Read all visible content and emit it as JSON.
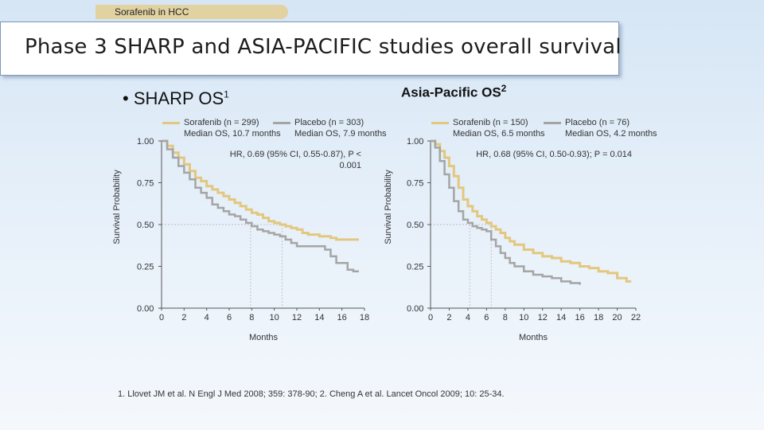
{
  "header": {
    "topic": "Sorafenib in HCC",
    "title": "Phase 3 SHARP and ASIA-PACIFIC studies overall survival"
  },
  "sharp": {
    "bullet": "•",
    "title": "SHARP OS",
    "sup": "1",
    "legend_sorafenib_1": "Sorafenib (n = 299)",
    "legend_sorafenib_2": "Median OS, 10.7 months",
    "legend_placebo_1": "Placebo (n = 303)",
    "legend_placebo_2": "Median OS, 7.9 months",
    "hr_1": "HR, 0.69 (95% CI, 0.55-0.87), P <",
    "hr_2": "0.001"
  },
  "asia": {
    "title": "Asia-Pacific OS",
    "sup": "2",
    "legend_sorafenib_1": "Sorafenib (n = 150)",
    "legend_sorafenib_2": "Median OS, 6.5 months",
    "legend_placebo_1": "Placebo (n = 76)",
    "legend_placebo_2": "Median OS, 4.2 months",
    "hr": "HR, 0.68 (95% CI, 0.50-0.93); P = 0.014"
  },
  "colors": {
    "sorafenib": "#e3c77e",
    "placebo": "#a5a5a5",
    "gridline": "#b8b8b8",
    "axis": "#555555"
  },
  "chart_data": [
    {
      "type": "line",
      "name": "sharp",
      "xlabel": "Months",
      "ylabel": "Survival Probability",
      "xlim": [
        0,
        18
      ],
      "ylim": [
        0,
        1.0
      ],
      "x_ticks": [
        "0",
        "2",
        "4",
        "6",
        "8",
        "10",
        "12",
        "14",
        "16",
        "18"
      ],
      "y_ticks": [
        "0.00",
        "0.25",
        "0.50",
        "0.75",
        "1.00"
      ],
      "median_lines": [
        7.9,
        10.7
      ],
      "series": [
        {
          "name": "Sorafenib",
          "color_key": "sorafenib",
          "points": [
            [
              0,
              1.0
            ],
            [
              0.5,
              0.97
            ],
            [
              1,
              0.93
            ],
            [
              1.5,
              0.9
            ],
            [
              2,
              0.86
            ],
            [
              2.5,
              0.82
            ],
            [
              3,
              0.78
            ],
            [
              3.5,
              0.76
            ],
            [
              4,
              0.73
            ],
            [
              4.5,
              0.71
            ],
            [
              5,
              0.69
            ],
            [
              5.5,
              0.67
            ],
            [
              6,
              0.65
            ],
            [
              6.5,
              0.63
            ],
            [
              7,
              0.61
            ],
            [
              7.5,
              0.59
            ],
            [
              8,
              0.57
            ],
            [
              8.5,
              0.56
            ],
            [
              9,
              0.54
            ],
            [
              9.5,
              0.52
            ],
            [
              10,
              0.51
            ],
            [
              10.5,
              0.5
            ],
            [
              11,
              0.49
            ],
            [
              11.5,
              0.48
            ],
            [
              12,
              0.47
            ],
            [
              12.5,
              0.45
            ],
            [
              13,
              0.44
            ],
            [
              13.5,
              0.44
            ],
            [
              14,
              0.43
            ],
            [
              14.5,
              0.43
            ],
            [
              15,
              0.42
            ],
            [
              15.5,
              0.41
            ],
            [
              16,
              0.41
            ],
            [
              16.5,
              0.41
            ],
            [
              17,
              0.41
            ],
            [
              17.5,
              0.41
            ]
          ]
        },
        {
          "name": "Placebo",
          "color_key": "placebo",
          "points": [
            [
              0,
              1.0
            ],
            [
              0.5,
              0.95
            ],
            [
              1,
              0.9
            ],
            [
              1.5,
              0.85
            ],
            [
              2,
              0.81
            ],
            [
              2.5,
              0.77
            ],
            [
              3,
              0.72
            ],
            [
              3.5,
              0.69
            ],
            [
              4,
              0.66
            ],
            [
              4.5,
              0.62
            ],
            [
              5,
              0.6
            ],
            [
              5.5,
              0.58
            ],
            [
              6,
              0.56
            ],
            [
              6.5,
              0.55
            ],
            [
              7,
              0.53
            ],
            [
              7.5,
              0.51
            ],
            [
              8,
              0.49
            ],
            [
              8.5,
              0.47
            ],
            [
              9,
              0.46
            ],
            [
              9.5,
              0.45
            ],
            [
              10,
              0.44
            ],
            [
              10.5,
              0.43
            ],
            [
              11,
              0.41
            ],
            [
              11.5,
              0.39
            ],
            [
              12,
              0.37
            ],
            [
              13,
              0.37
            ],
            [
              14,
              0.37
            ],
            [
              14.5,
              0.35
            ],
            [
              15,
              0.31
            ],
            [
              15.5,
              0.27
            ],
            [
              16,
              0.27
            ],
            [
              16.5,
              0.23
            ],
            [
              17,
              0.22
            ],
            [
              17.5,
              0.22
            ]
          ]
        }
      ]
    },
    {
      "type": "line",
      "name": "asia",
      "xlabel": "Months",
      "ylabel": "Survival Probability",
      "xlim": [
        0,
        22
      ],
      "ylim": [
        0,
        1.0
      ],
      "x_ticks": [
        "0",
        "2",
        "4",
        "6",
        "8",
        "10",
        "12",
        "14",
        "16",
        "18",
        "20",
        "22"
      ],
      "y_ticks": [
        "0.00",
        "0.25",
        "0.50",
        "0.75",
        "1.00"
      ],
      "median_lines": [
        4.2,
        6.5
      ],
      "series": [
        {
          "name": "Sorafenib",
          "color_key": "sorafenib",
          "points": [
            [
              0,
              1.0
            ],
            [
              0.5,
              0.98
            ],
            [
              1,
              0.94
            ],
            [
              1.5,
              0.9
            ],
            [
              2,
              0.85
            ],
            [
              2.5,
              0.79
            ],
            [
              3,
              0.72
            ],
            [
              3.5,
              0.65
            ],
            [
              4,
              0.61
            ],
            [
              4.5,
              0.58
            ],
            [
              5,
              0.55
            ],
            [
              5.5,
              0.53
            ],
            [
              6,
              0.51
            ],
            [
              6.5,
              0.49
            ],
            [
              7,
              0.47
            ],
            [
              7.5,
              0.45
            ],
            [
              8,
              0.42
            ],
            [
              8.5,
              0.4
            ],
            [
              9,
              0.38
            ],
            [
              10,
              0.35
            ],
            [
              11,
              0.33
            ],
            [
              12,
              0.31
            ],
            [
              13,
              0.3
            ],
            [
              14,
              0.28
            ],
            [
              15,
              0.27
            ],
            [
              16,
              0.25
            ],
            [
              17,
              0.24
            ],
            [
              18,
              0.22
            ],
            [
              19,
              0.21
            ],
            [
              20,
              0.18
            ],
            [
              21,
              0.16
            ],
            [
              21.5,
              0.16
            ]
          ]
        },
        {
          "name": "Placebo",
          "color_key": "placebo",
          "points": [
            [
              0,
              1.0
            ],
            [
              0.5,
              0.96
            ],
            [
              1,
              0.88
            ],
            [
              1.5,
              0.8
            ],
            [
              2,
              0.72
            ],
            [
              2.5,
              0.64
            ],
            [
              3,
              0.58
            ],
            [
              3.5,
              0.53
            ],
            [
              4,
              0.51
            ],
            [
              4.5,
              0.49
            ],
            [
              5,
              0.48
            ],
            [
              5.5,
              0.47
            ],
            [
              6,
              0.46
            ],
            [
              6.5,
              0.41
            ],
            [
              7,
              0.37
            ],
            [
              7.5,
              0.33
            ],
            [
              8,
              0.3
            ],
            [
              8.5,
              0.27
            ],
            [
              9,
              0.25
            ],
            [
              10,
              0.22
            ],
            [
              11,
              0.2
            ],
            [
              12,
              0.19
            ],
            [
              13,
              0.18
            ],
            [
              14,
              0.16
            ],
            [
              15,
              0.15
            ],
            [
              16,
              0.14
            ]
          ]
        }
      ]
    }
  ],
  "reference": "1. Llovet JM et al. N Engl J Med 2008; 359: 378-90; 2. Cheng A et al. Lancet Oncol 2009; 10: 25-34."
}
